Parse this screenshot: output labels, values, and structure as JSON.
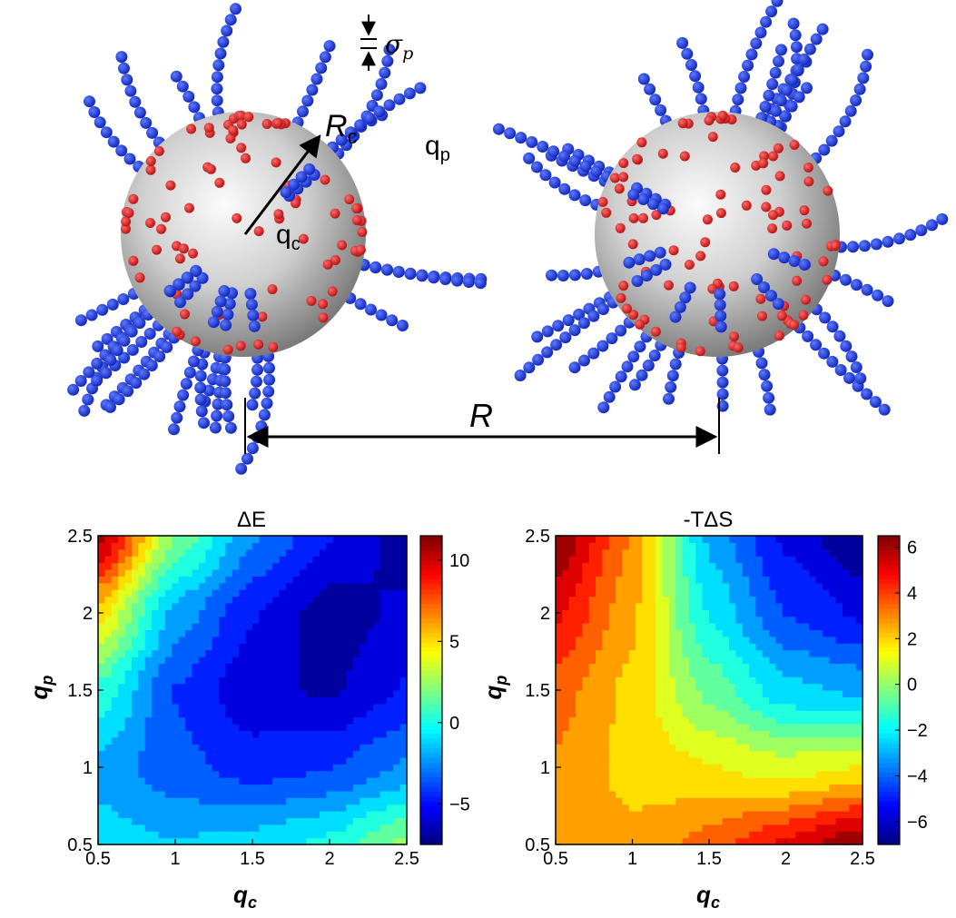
{
  "schematic": {
    "sigma_label": "σ",
    "sigma_sub": "p",
    "rc_label": "R",
    "rc_sub": "c",
    "qp_label": "q",
    "qp_sub": "p",
    "qc_label": "q",
    "qc_sub": "c",
    "distance_label": "R",
    "colors": {
      "core": "#b8b8b8",
      "core_highlight": "#f4f4f4",
      "charge": "#d42121",
      "polymer": "#1c33d6"
    }
  },
  "chart_data": [
    {
      "type": "heatmap",
      "title": "ΔE",
      "xlabel": "q",
      "xlabel_sub": "c",
      "ylabel": "q",
      "ylabel_sub": "p",
      "xlim": [
        0.5,
        2.5
      ],
      "ylim": [
        0.5,
        2.5
      ],
      "xticks": [
        "0.5",
        "1",
        "1.5",
        "2",
        "2.5"
      ],
      "yticks": [
        "0.5",
        "1",
        "1.5",
        "2",
        "2.5"
      ],
      "colorbar": {
        "range": [
          -7.5,
          11.5
        ],
        "ticks": [
          "−5",
          "0",
          "5",
          "10"
        ],
        "tick_values": [
          -5,
          0,
          5,
          10
        ]
      },
      "x": [
        0.5,
        1.0,
        1.5,
        2.0,
        2.5
      ],
      "y": [
        0.5,
        1.0,
        1.5,
        2.0,
        2.5
      ],
      "z": [
        [
          -1.0,
          -2.0,
          0.5,
          5.0,
          11.0
        ],
        [
          -1.5,
          -3.5,
          -4.0,
          -2.0,
          2.0
        ],
        [
          -1.0,
          -4.5,
          -6.0,
          -5.0,
          -2.5
        ],
        [
          0.0,
          -4.0,
          -6.5,
          -7.0,
          -5.0
        ],
        [
          2.5,
          -2.5,
          -5.0,
          -6.0,
          -7.0
        ]
      ]
    },
    {
      "type": "heatmap",
      "title": "-TΔS",
      "xlabel": "q",
      "xlabel_sub": "c",
      "ylabel": "q",
      "ylabel_sub": "p",
      "xlim": [
        0.5,
        2.5
      ],
      "ylim": [
        0.5,
        2.5
      ],
      "xticks": [
        "0.5",
        "1",
        "1.5",
        "2",
        "2.5"
      ],
      "yticks": [
        "0.5",
        "1",
        "1.5",
        "2",
        "2.5"
      ],
      "colorbar": {
        "range": [
          -7,
          6.5
        ],
        "ticks": [
          "−6",
          "−4",
          "−2",
          "0",
          "2",
          "4",
          "6"
        ],
        "tick_values": [
          -6,
          -4,
          -2,
          0,
          2,
          4,
          6
        ]
      },
      "x": [
        0.5,
        1.0,
        1.5,
        2.0,
        2.5
      ],
      "y": [
        0.5,
        1.0,
        1.5,
        2.0,
        2.5
      ],
      "z": [
        [
          2.5,
          3.0,
          3.5,
          5.0,
          6.5
        ],
        [
          2.5,
          2.0,
          2.0,
          2.5,
          3.0
        ],
        [
          3.5,
          1.5,
          -0.5,
          -2.0,
          -3.0
        ],
        [
          5.0,
          1.0,
          -2.5,
          -4.5,
          -5.5
        ],
        [
          6.5,
          1.5,
          -3.0,
          -5.5,
          -7.0
        ]
      ]
    }
  ]
}
